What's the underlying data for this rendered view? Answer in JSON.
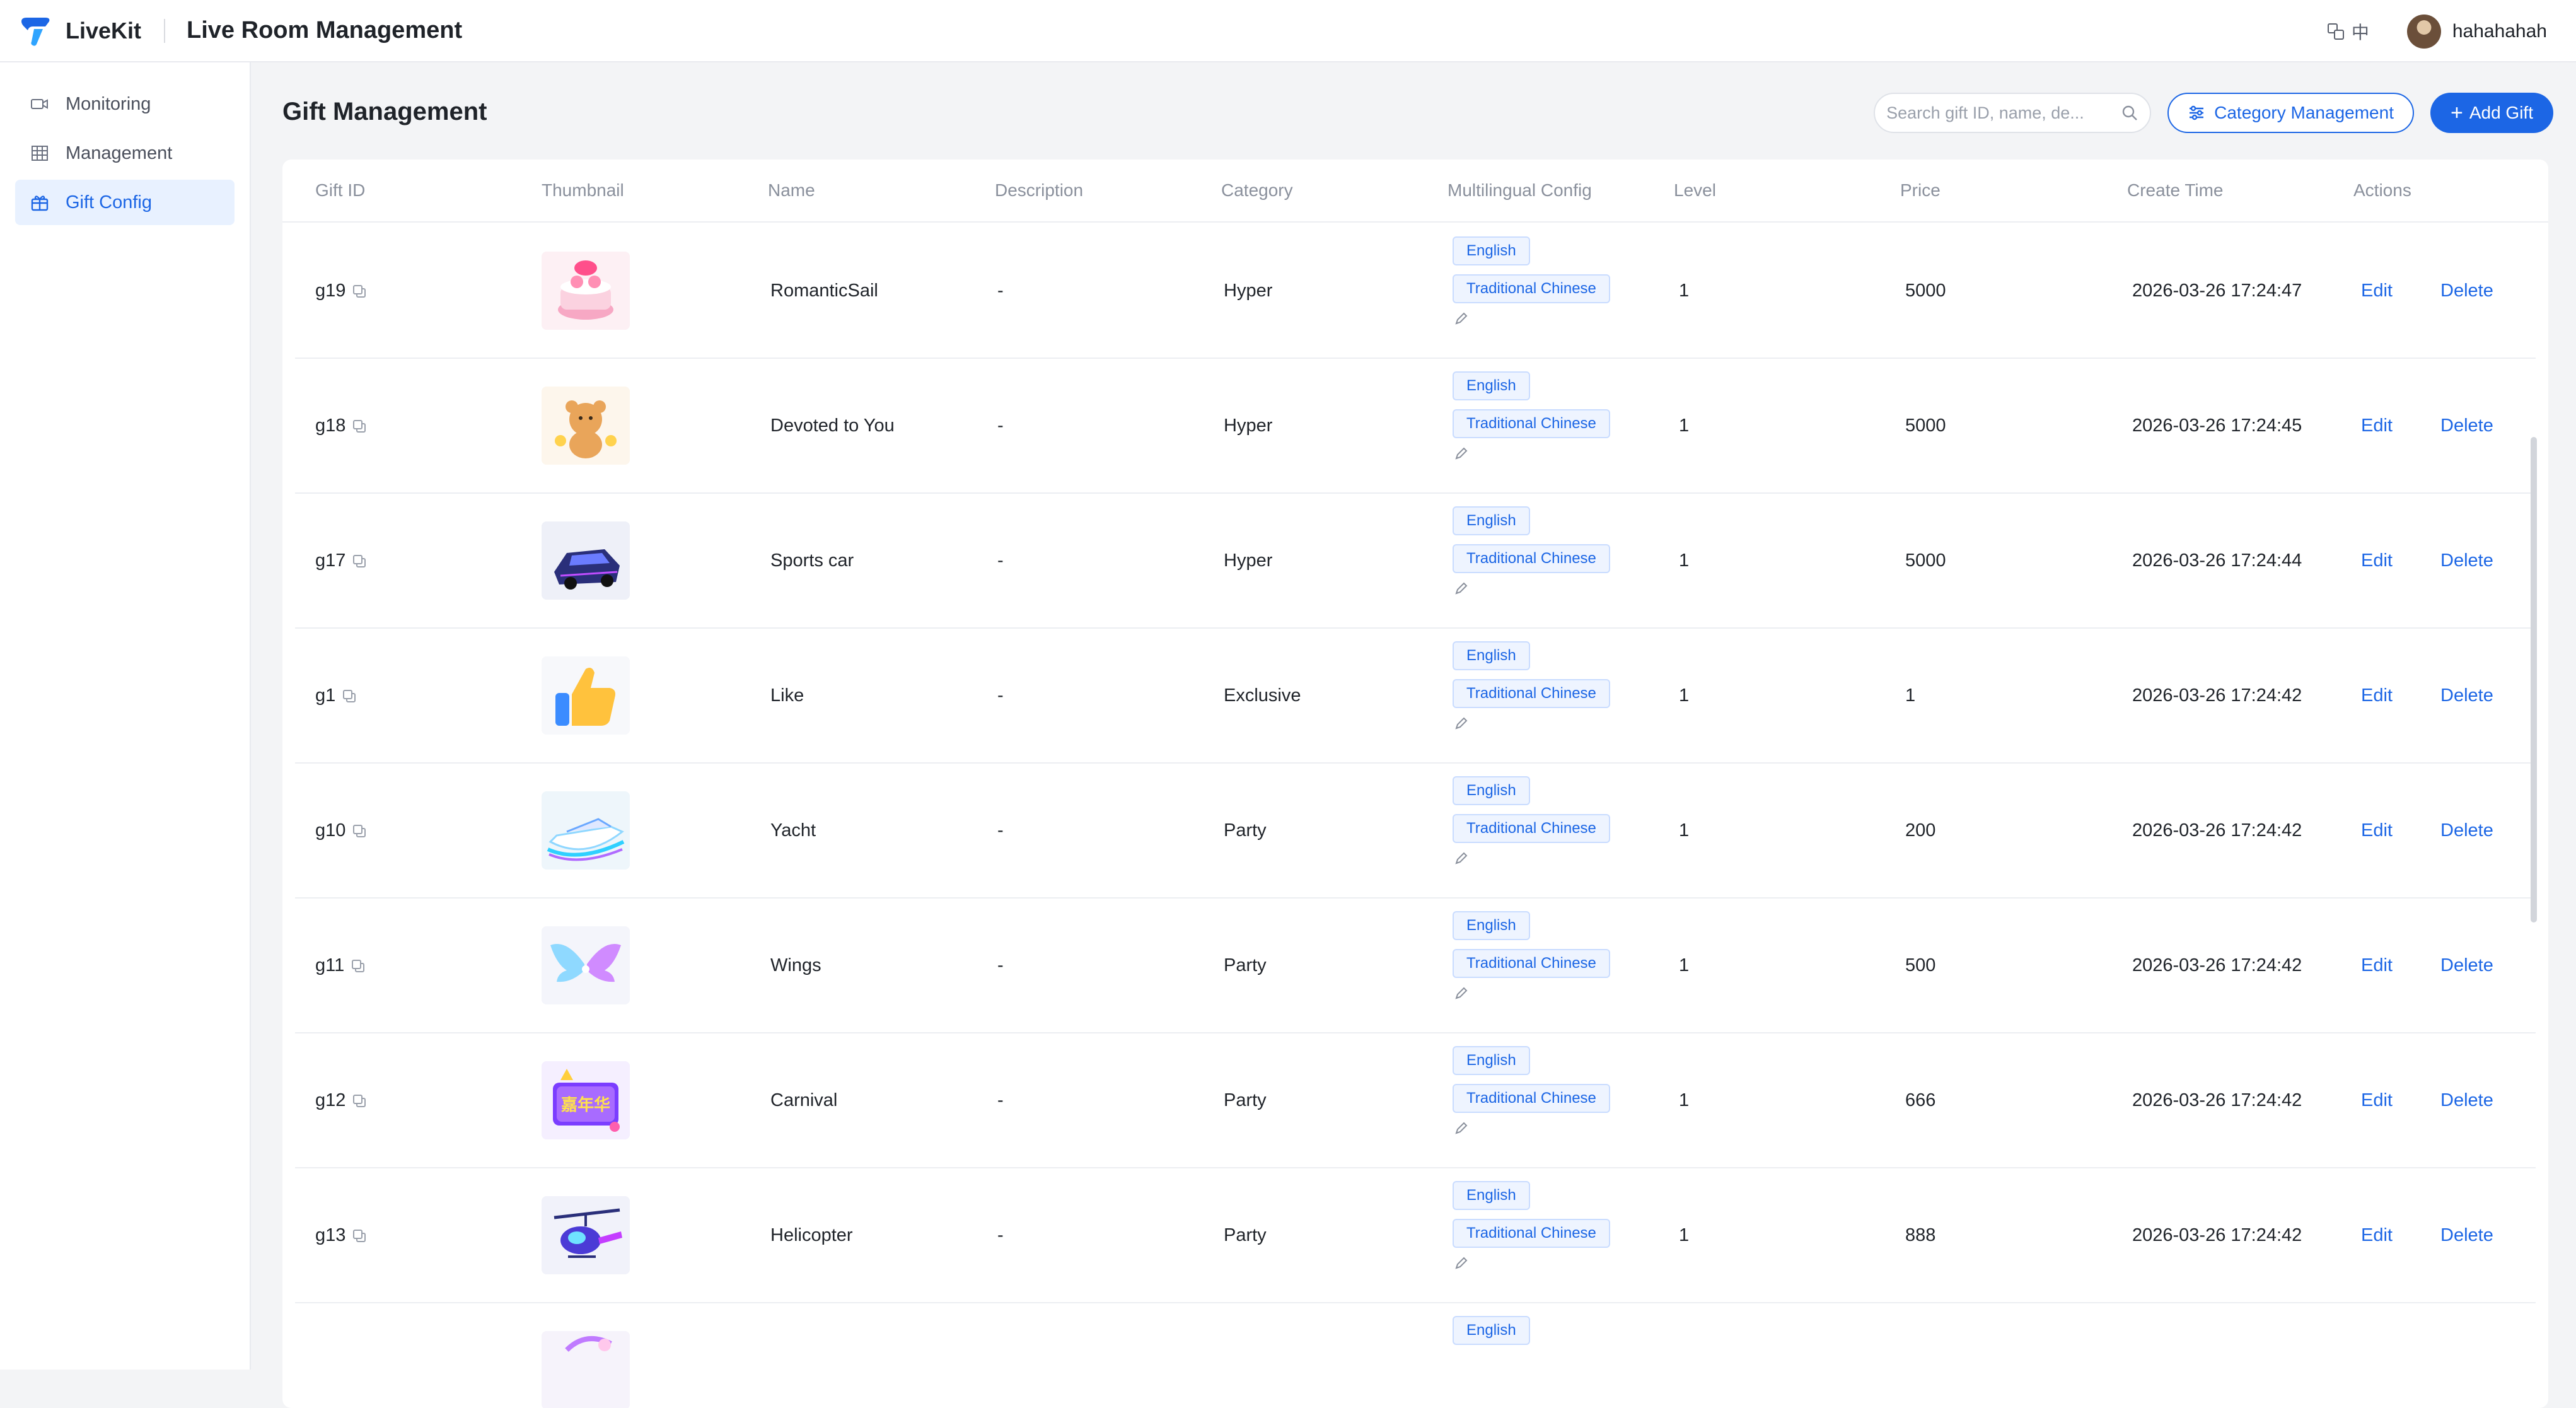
{
  "topbar": {
    "brand_name": "LiveKit",
    "app_title": "Live Room Management",
    "lang_label": "中",
    "username": "hahahahah"
  },
  "sidebar": {
    "items": [
      {
        "label": "Monitoring",
        "icon": "camera-icon",
        "active": false
      },
      {
        "label": "Management",
        "icon": "grid-icon",
        "active": false
      },
      {
        "label": "Gift Config",
        "icon": "gift-icon",
        "active": true
      }
    ]
  },
  "page": {
    "title": "Gift Management",
    "search_placeholder": "Search gift ID, name, de...",
    "category_button": "Category Management",
    "add_button": "Add Gift"
  },
  "table": {
    "columns": [
      "Gift ID",
      "Thumbnail",
      "Name",
      "Description",
      "Category",
      "Multilingual Config",
      "Level",
      "Price",
      "Create Time",
      "Actions"
    ],
    "rows": [
      {
        "id": "g19",
        "name": "RomanticSail",
        "description": "-",
        "category": "Hyper",
        "lang1": "English",
        "lang2": "Traditional Chinese",
        "level": "1",
        "price": "5000",
        "created": "2026-03-26 17:24:47",
        "edit": "Edit",
        "delete": "Delete",
        "thumb": "cake"
      },
      {
        "id": "g18",
        "name": "Devoted to You",
        "description": "-",
        "category": "Hyper",
        "lang1": "English",
        "lang2": "Traditional Chinese",
        "level": "1",
        "price": "5000",
        "created": "2026-03-26 17:24:45",
        "edit": "Edit",
        "delete": "Delete",
        "thumb": "bear"
      },
      {
        "id": "g17",
        "name": "Sports car",
        "description": "-",
        "category": "Hyper",
        "lang1": "English",
        "lang2": "Traditional Chinese",
        "level": "1",
        "price": "5000",
        "created": "2026-03-26 17:24:44",
        "edit": "Edit",
        "delete": "Delete",
        "thumb": "car"
      },
      {
        "id": "g1",
        "name": "Like",
        "description": "-",
        "category": "Exclusive",
        "lang1": "English",
        "lang2": "Traditional Chinese",
        "level": "1",
        "price": "1",
        "created": "2026-03-26 17:24:42",
        "edit": "Edit",
        "delete": "Delete",
        "thumb": "thumb"
      },
      {
        "id": "g10",
        "name": "Yacht",
        "description": "-",
        "category": "Party",
        "lang1": "English",
        "lang2": "Traditional Chinese",
        "level": "1",
        "price": "200",
        "created": "2026-03-26 17:24:42",
        "edit": "Edit",
        "delete": "Delete",
        "thumb": "yacht"
      },
      {
        "id": "g11",
        "name": "Wings",
        "description": "-",
        "category": "Party",
        "lang1": "English",
        "lang2": "Traditional Chinese",
        "level": "1",
        "price": "500",
        "created": "2026-03-26 17:24:42",
        "edit": "Edit",
        "delete": "Delete",
        "thumb": "wings"
      },
      {
        "id": "g12",
        "name": "Carnival",
        "description": "-",
        "category": "Party",
        "lang1": "English",
        "lang2": "Traditional Chinese",
        "level": "1",
        "price": "666",
        "created": "2026-03-26 17:24:42",
        "edit": "Edit",
        "delete": "Delete",
        "thumb": "carnival"
      },
      {
        "id": "g13",
        "name": "Helicopter",
        "description": "-",
        "category": "Party",
        "lang1": "English",
        "lang2": "Traditional Chinese",
        "level": "1",
        "price": "888",
        "created": "2026-03-26 17:24:42",
        "edit": "Edit",
        "delete": "Delete",
        "thumb": "helicopter"
      }
    ],
    "partial_row": {
      "lang1": "English",
      "thumb": "partial"
    }
  },
  "colors": {
    "accent": "#1c66e5",
    "tag_bg": "#eef4ff",
    "tag_border": "#c9dcff",
    "sidebar_active_bg": "#e8f1ff"
  }
}
